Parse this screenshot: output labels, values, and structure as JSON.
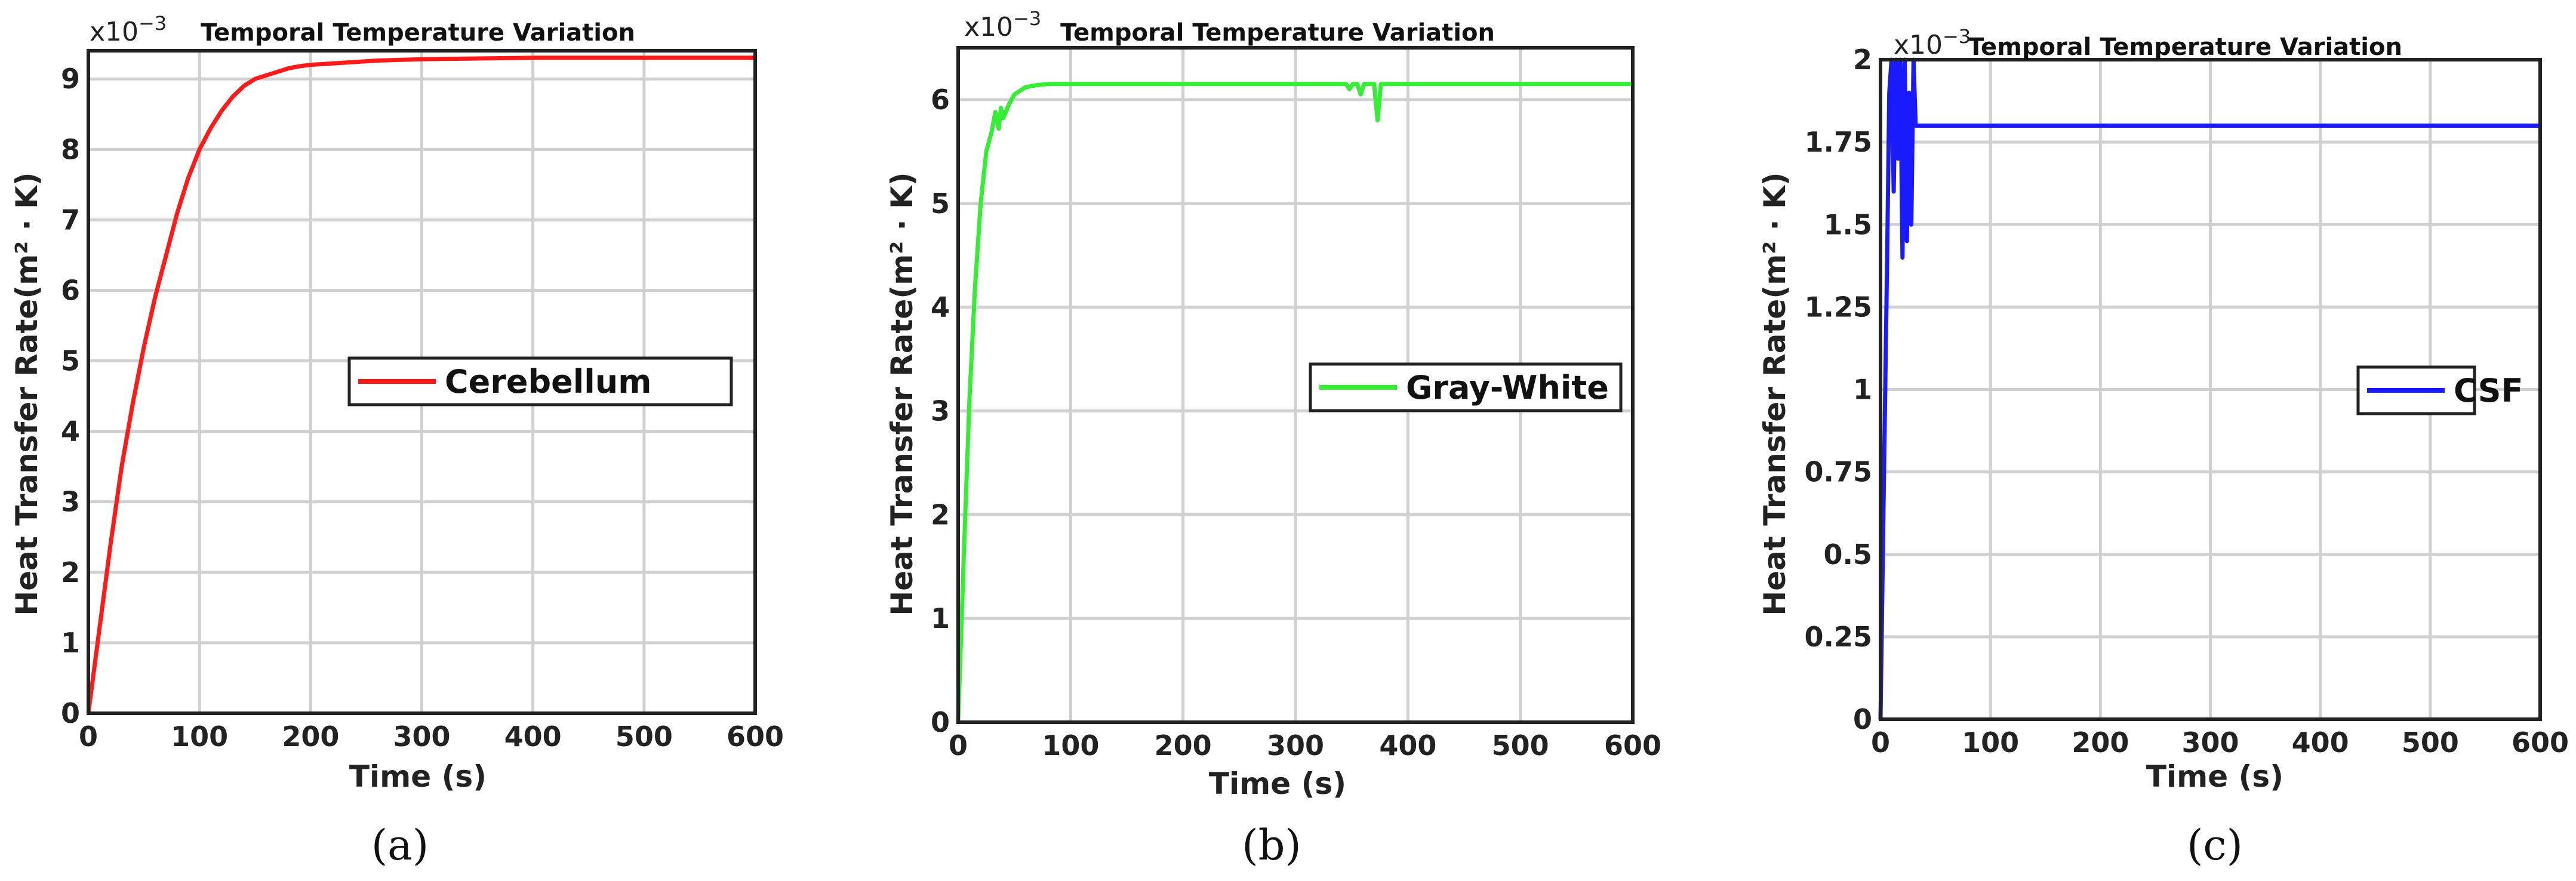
{
  "chart_data": [
    {
      "type": "line",
      "title": "Temporal Temperature Variation",
      "xlabel": "Time (s)",
      "ylabel": "Heat Transfer Rate(m² · K)",
      "exponent": "x10",
      "exponent_power": "−3",
      "xlim": [
        0,
        600
      ],
      "ylim": [
        0,
        9.4
      ],
      "xticks": [
        "0",
        "100",
        "200",
        "300",
        "400",
        "500",
        "600"
      ],
      "yticks": [
        "0",
        "1",
        "2",
        "3",
        "4",
        "5",
        "6",
        "7",
        "8",
        "9"
      ],
      "ytick_values": [
        0,
        1,
        2,
        3,
        4,
        5,
        6,
        7,
        8,
        9
      ],
      "grid": true,
      "legend_position": "right",
      "caption": "(a)",
      "series": [
        {
          "name": "Cerebellum",
          "color": "#ff1a1a",
          "x": [
            0,
            10,
            20,
            30,
            40,
            50,
            60,
            70,
            80,
            90,
            100,
            110,
            120,
            130,
            140,
            150,
            160,
            170,
            180,
            190,
            200,
            220,
            240,
            260,
            280,
            300,
            350,
            400,
            450,
            500,
            550,
            600
          ],
          "y": [
            0,
            1.2,
            2.4,
            3.5,
            4.4,
            5.2,
            5.9,
            6.5,
            7.1,
            7.6,
            8.0,
            8.3,
            8.55,
            8.75,
            8.9,
            9.0,
            9.05,
            9.1,
            9.15,
            9.18,
            9.2,
            9.22,
            9.24,
            9.26,
            9.27,
            9.28,
            9.29,
            9.3,
            9.3,
            9.3,
            9.3,
            9.3
          ]
        }
      ]
    },
    {
      "type": "line",
      "title": "Temporal Temperature Variation",
      "xlabel": "Time (s)",
      "ylabel": "Heat Transfer Rate(m² · K)",
      "exponent": "x10",
      "exponent_power": "−3",
      "xlim": [
        0,
        600
      ],
      "ylim": [
        0,
        6.5
      ],
      "xticks": [
        "0",
        "100",
        "200",
        "300",
        "400",
        "500",
        "600"
      ],
      "yticks": [
        "0",
        "1",
        "2",
        "3",
        "4",
        "5",
        "6"
      ],
      "ytick_values": [
        0,
        1,
        2,
        3,
        4,
        5,
        6
      ],
      "grid": true,
      "legend_position": "right",
      "caption": "(b)",
      "series": [
        {
          "name": "Gray-White",
          "color": "#33ee33",
          "x": [
            0,
            5,
            10,
            15,
            20,
            25,
            30,
            33,
            36,
            38,
            40,
            45,
            50,
            60,
            70,
            80,
            90,
            100,
            150,
            200,
            300,
            345,
            348,
            351,
            355,
            358,
            361,
            365,
            370,
            373,
            376,
            380,
            400,
            500,
            600
          ],
          "y": [
            0,
            1.6,
            3.1,
            4.2,
            5.0,
            5.5,
            5.7,
            5.88,
            5.72,
            5.92,
            5.82,
            5.95,
            6.05,
            6.12,
            6.14,
            6.15,
            6.15,
            6.15,
            6.15,
            6.15,
            6.15,
            6.15,
            6.1,
            6.15,
            6.15,
            6.05,
            6.15,
            6.15,
            6.15,
            5.8,
            6.15,
            6.15,
            6.15,
            6.15,
            6.15
          ]
        }
      ]
    },
    {
      "type": "line",
      "title": "Temporal Temperature Variation",
      "xlabel": "Time (s)",
      "ylabel": "Heat Transfer Rate(m² · K)",
      "exponent": "x10",
      "exponent_power": "−3",
      "xlim": [
        0,
        600
      ],
      "ylim": [
        0,
        2
      ],
      "xticks": [
        "0",
        "100",
        "200",
        "300",
        "400",
        "500",
        "600"
      ],
      "yticks": [
        "0",
        "0.25",
        "0.5",
        "0.75",
        "1",
        "1.25",
        "1.5",
        "1.75",
        "2"
      ],
      "ytick_values": [
        0,
        0.25,
        0.5,
        0.75,
        1,
        1.25,
        1.5,
        1.75,
        2
      ],
      "grid": true,
      "legend_position": "right",
      "caption": "(c)",
      "series": [
        {
          "name": "CSF",
          "color": "#1a1aff",
          "x": [
            0,
            3,
            6,
            8,
            10,
            12,
            14,
            16,
            18,
            20,
            22,
            24,
            26,
            28,
            30,
            32,
            34,
            40,
            100,
            200,
            300,
            400,
            500,
            600
          ],
          "y": [
            0,
            0.7,
            1.4,
            1.9,
            2.0,
            1.6,
            2.0,
            1.7,
            2.0,
            1.4,
            2.0,
            1.45,
            1.9,
            1.5,
            2.0,
            1.8,
            1.8,
            1.8,
            1.8,
            1.8,
            1.8,
            1.8,
            1.8,
            1.8
          ]
        }
      ]
    }
  ]
}
